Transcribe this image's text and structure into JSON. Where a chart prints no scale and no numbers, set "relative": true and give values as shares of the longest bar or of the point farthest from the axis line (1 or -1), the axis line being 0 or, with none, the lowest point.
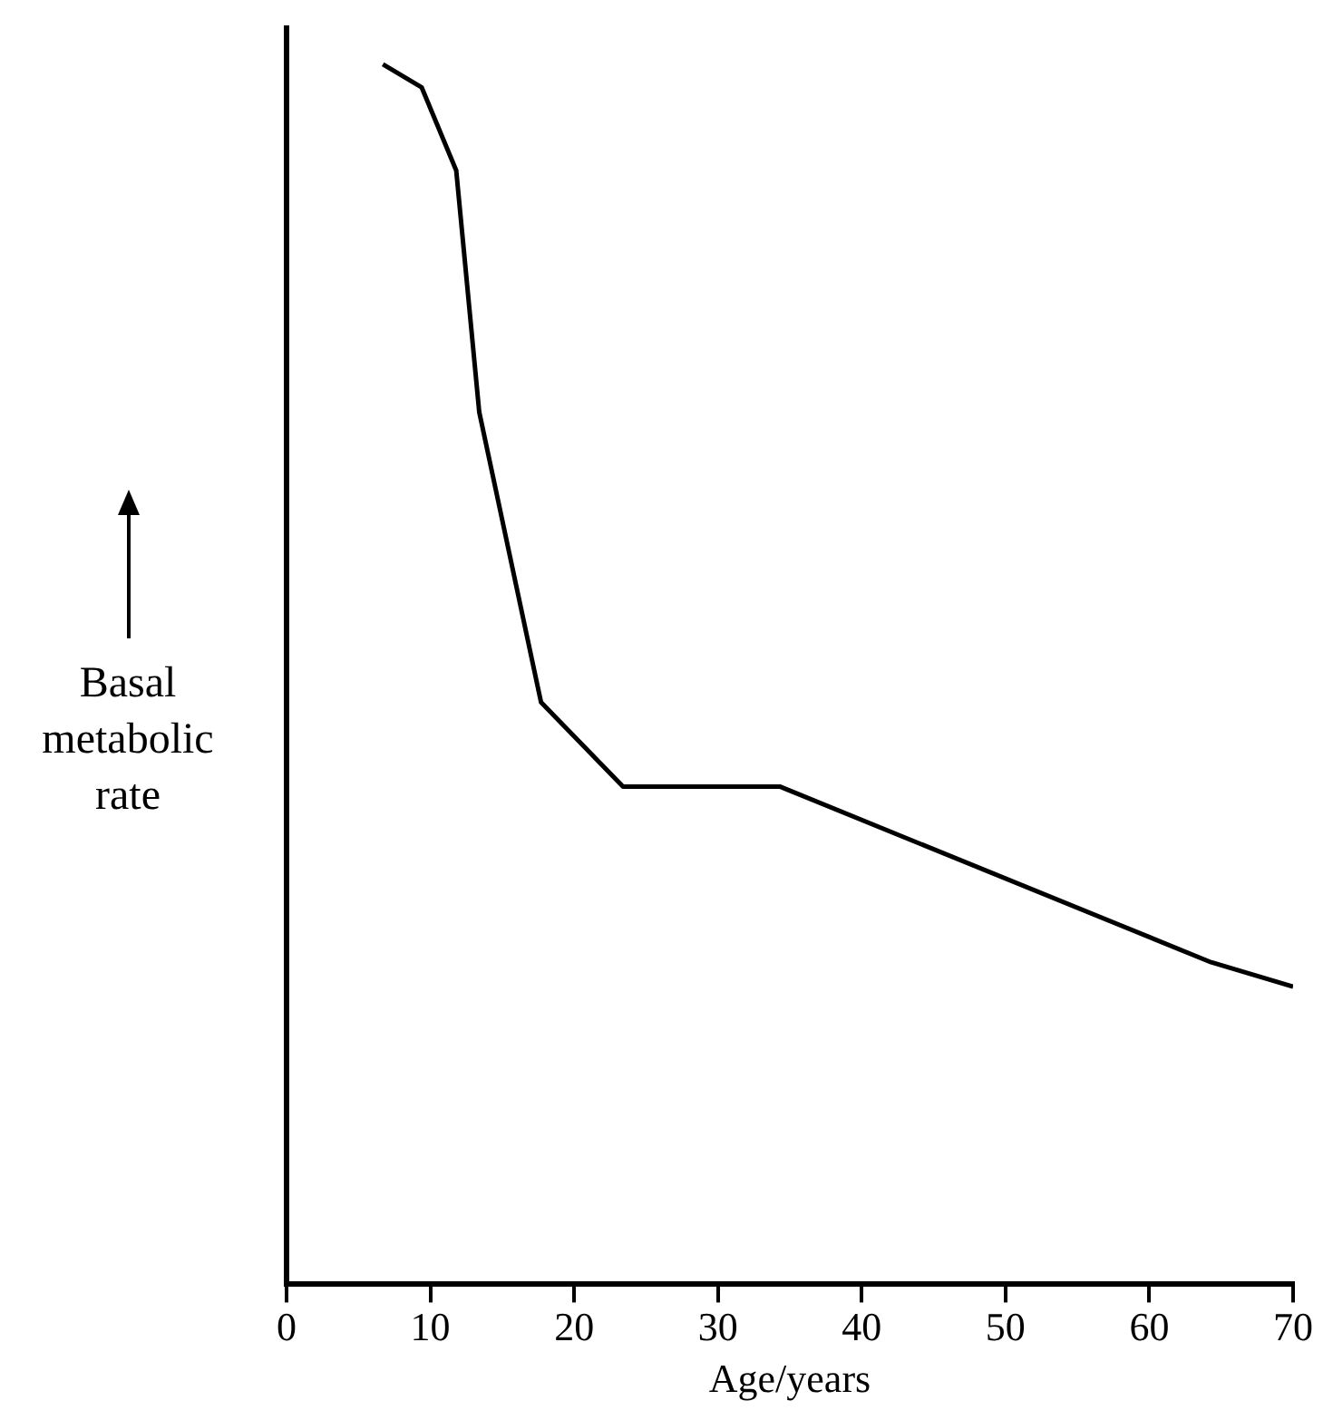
{
  "chart_data": {
    "type": "line",
    "xlabel": "Age/years",
    "ylabel": "Basal metabolic rate",
    "relative": true,
    "x": [
      6.7,
      9.4,
      11.8,
      13.4,
      17.7,
      23.4,
      34.3,
      64.3,
      70
    ],
    "values": [
      1,
      0.981,
      0.913,
      0.715,
      0.477,
      0.408,
      0.408,
      0.264,
      0.244
    ],
    "color": "#000000",
    "marker": "none",
    "line_style": "solid",
    "grid": false,
    "legend": false,
    "xlim": [
      0,
      70
    ],
    "xticks": [
      0,
      10,
      20,
      30,
      40,
      50,
      60,
      70
    ]
  }
}
